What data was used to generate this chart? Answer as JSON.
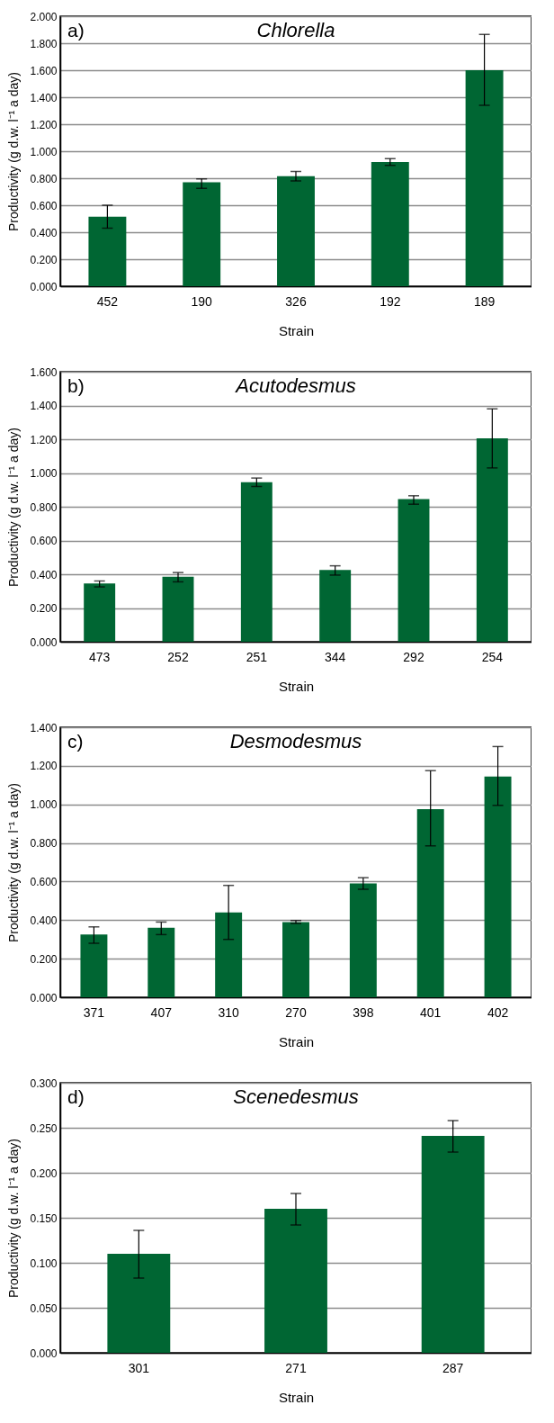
{
  "chart_data": [
    {
      "type": "bar",
      "title": "Chlorella",
      "annotations": [
        "a)"
      ],
      "xlabel": "Strain",
      "ylabel": "Productivity (g d.w. l⁻¹ a day)",
      "color": "#006633",
      "grid": "y",
      "categories": [
        "452",
        "190",
        "326",
        "192",
        "189"
      ],
      "values": [
        0.515,
        0.77,
        0.815,
        0.92,
        1.6
      ],
      "errors": [
        [
          0.43,
          0.6
        ],
        [
          0.725,
          0.795
        ],
        [
          0.78,
          0.85
        ],
        [
          0.895,
          0.945
        ],
        [
          1.34,
          1.865
        ]
      ],
      "ylim": [
        0,
        2
      ],
      "yticks": [
        {
          "value": 0,
          "label": "0.000"
        },
        {
          "value": 0.2,
          "label": "0.200"
        },
        {
          "value": 0.4,
          "label": "0.400"
        },
        {
          "value": 0.6,
          "label": "0.600"
        },
        {
          "value": 0.8,
          "label": "0.800"
        },
        {
          "value": 1,
          "label": "1.000"
        },
        {
          "value": 1.2,
          "label": "1.200"
        },
        {
          "value": 1.4,
          "label": "1.400"
        },
        {
          "value": 1.6,
          "label": "1.600"
        },
        {
          "value": 1.8,
          "label": "1.800"
        },
        {
          "value": 2,
          "label": "2.000"
        }
      ]
    },
    {
      "type": "bar",
      "title": "Acutodesmus",
      "annotations": [
        "b)"
      ],
      "xlabel": "Strain",
      "ylabel": "Productivity (g d.w. l⁻¹ a day)",
      "color": "#006633",
      "grid": "y",
      "categories": [
        "473",
        "252",
        "251",
        "344",
        "292",
        "254"
      ],
      "values": [
        0.345,
        0.385,
        0.945,
        0.425,
        0.845,
        1.205
      ],
      "errors": [
        [
          0.325,
          0.36
        ],
        [
          0.355,
          0.41
        ],
        [
          0.92,
          0.97
        ],
        [
          0.395,
          0.45
        ],
        [
          0.815,
          0.865
        ],
        [
          1.03,
          1.38
        ]
      ],
      "ylim": [
        0,
        1.6
      ],
      "yticks": [
        {
          "value": 0,
          "label": "0.000"
        },
        {
          "value": 0.2,
          "label": "0.200"
        },
        {
          "value": 0.4,
          "label": "0.400"
        },
        {
          "value": 0.6,
          "label": "0.600"
        },
        {
          "value": 0.8,
          "label": "0.800"
        },
        {
          "value": 1,
          "label": "1.000"
        },
        {
          "value": 1.2,
          "label": "1.200"
        },
        {
          "value": 1.4,
          "label": "1.400"
        },
        {
          "value": 1.6,
          "label": "1.600"
        }
      ]
    },
    {
      "type": "bar",
      "title": "Desmodesmus",
      "annotations": [
        "c)"
      ],
      "xlabel": "Strain",
      "ylabel": "Productivity (g d.w. l⁻¹ a day)",
      "color": "#006633",
      "grid": "y",
      "categories": [
        "371",
        "407",
        "310",
        "270",
        "398",
        "401",
        "402"
      ],
      "values": [
        0.325,
        0.36,
        0.44,
        0.39,
        0.59,
        0.975,
        1.145
      ],
      "errors": [
        [
          0.28,
          0.365
        ],
        [
          0.325,
          0.39
        ],
        [
          0.3,
          0.58
        ],
        [
          0.383,
          0.398
        ],
        [
          0.56,
          0.62
        ],
        [
          0.785,
          1.175
        ],
        [
          0.995,
          1.3
        ]
      ],
      "ylim": [
        0,
        1.4
      ],
      "yticks": [
        {
          "value": 0,
          "label": "0.000"
        },
        {
          "value": 0.2,
          "label": "0.200"
        },
        {
          "value": 0.4,
          "label": "0.400"
        },
        {
          "value": 0.6,
          "label": "0.600"
        },
        {
          "value": 0.8,
          "label": "0.800"
        },
        {
          "value": 1,
          "label": "1.000"
        },
        {
          "value": 1.2,
          "label": "1.200"
        },
        {
          "value": 1.4,
          "label": "1.400"
        }
      ]
    },
    {
      "type": "bar",
      "title": "Scenedesmus",
      "annotations": [
        "d)"
      ],
      "xlabel": "Strain",
      "ylabel": "Productivity (g d.w. l⁻¹ a day)",
      "color": "#006633",
      "grid": "y",
      "categories": [
        "301",
        "271",
        "287"
      ],
      "values": [
        0.11,
        0.16,
        0.241
      ],
      "errors": [
        [
          0.083,
          0.136
        ],
        [
          0.142,
          0.177
        ],
        [
          0.223,
          0.258
        ]
      ],
      "ylim": [
        0,
        0.3
      ],
      "yticks": [
        {
          "value": 0,
          "label": "0.000"
        },
        {
          "value": 0.05,
          "label": "0.050"
        },
        {
          "value": 0.1,
          "label": "0.100"
        },
        {
          "value": 0.15,
          "label": "0.150"
        },
        {
          "value": 0.2,
          "label": "0.200"
        },
        {
          "value": 0.25,
          "label": "0.250"
        },
        {
          "value": 0.3,
          "label": "0.300"
        }
      ]
    }
  ]
}
